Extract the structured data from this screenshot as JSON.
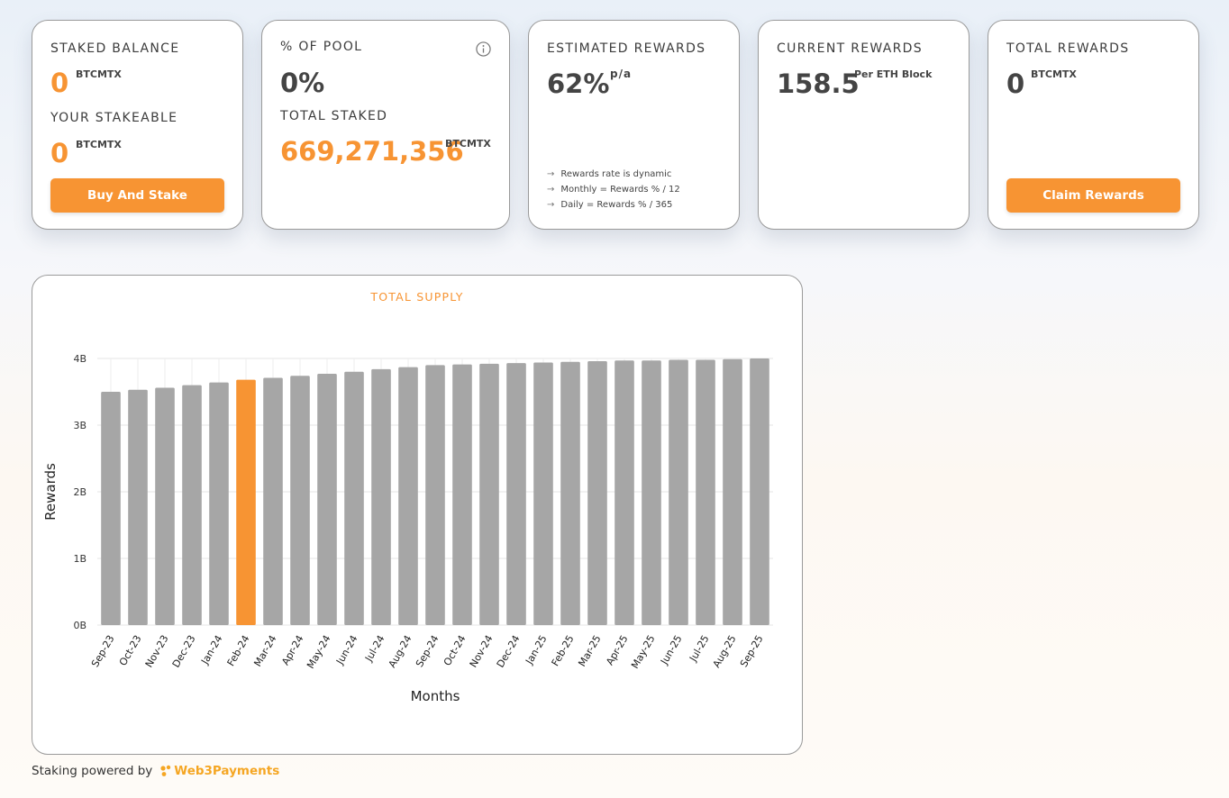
{
  "cards": {
    "staked": {
      "label": "STAKED BALANCE",
      "value": "0",
      "unit": "BTCMTX",
      "stakeable_label": "YOUR STAKEABLE",
      "stakeable_value": "0",
      "stakeable_unit": "BTCMTX",
      "button": "Buy And Stake"
    },
    "pool": {
      "label": "% OF POOL",
      "value": "0%",
      "info_icon": "info-icon",
      "total_label": "TOTAL STAKED",
      "total_value": "669,271,356",
      "total_unit": "BTCMTX"
    },
    "estimated": {
      "label": "ESTIMATED REWARDS",
      "value": "62%",
      "unit": "p/a",
      "notes": [
        "Rewards rate is dynamic",
        "Monthly = Rewards % / 12",
        "Daily = Rewards % / 365"
      ]
    },
    "current": {
      "label": "CURRENT REWARDS",
      "value": "158.5",
      "unit": "Per ETH Block"
    },
    "total": {
      "label": "TOTAL REWARDS",
      "value": "0",
      "unit": "BTCMTX",
      "button": "Claim Rewards"
    }
  },
  "chart_data": {
    "type": "bar",
    "title": "TOTAL SUPPLY",
    "xlabel": "Months",
    "ylabel": "Rewards",
    "ylim": [
      0,
      4
    ],
    "yticks": [
      "0B",
      "1B",
      "2B",
      "3B",
      "4B"
    ],
    "grid": true,
    "categories": [
      "Sep-23",
      "Oct-23",
      "Nov-23",
      "Dec-23",
      "Jan-24",
      "Feb-24",
      "Mar-24",
      "Apr-24",
      "May-24",
      "Jun-24",
      "Jul-24",
      "Aug-24",
      "Sep-24",
      "Oct-24",
      "Nov-24",
      "Dec-24",
      "Jan-25",
      "Feb-25",
      "Mar-25",
      "Apr-25",
      "May-25",
      "Jun-25",
      "Jul-25",
      "Aug-25",
      "Sep-25"
    ],
    "values": [
      3.5,
      3.53,
      3.56,
      3.6,
      3.64,
      3.68,
      3.71,
      3.74,
      3.77,
      3.8,
      3.84,
      3.87,
      3.9,
      3.91,
      3.92,
      3.93,
      3.94,
      3.95,
      3.96,
      3.97,
      3.97,
      3.98,
      3.98,
      3.99,
      4.0
    ],
    "highlight_index": 5,
    "colors": {
      "bar": "#a6a6a6",
      "highlight": "#f79433"
    }
  },
  "footer": {
    "text": "Staking powered by",
    "brand": "Web3Payments"
  },
  "colors": {
    "accent": "#f79433"
  }
}
